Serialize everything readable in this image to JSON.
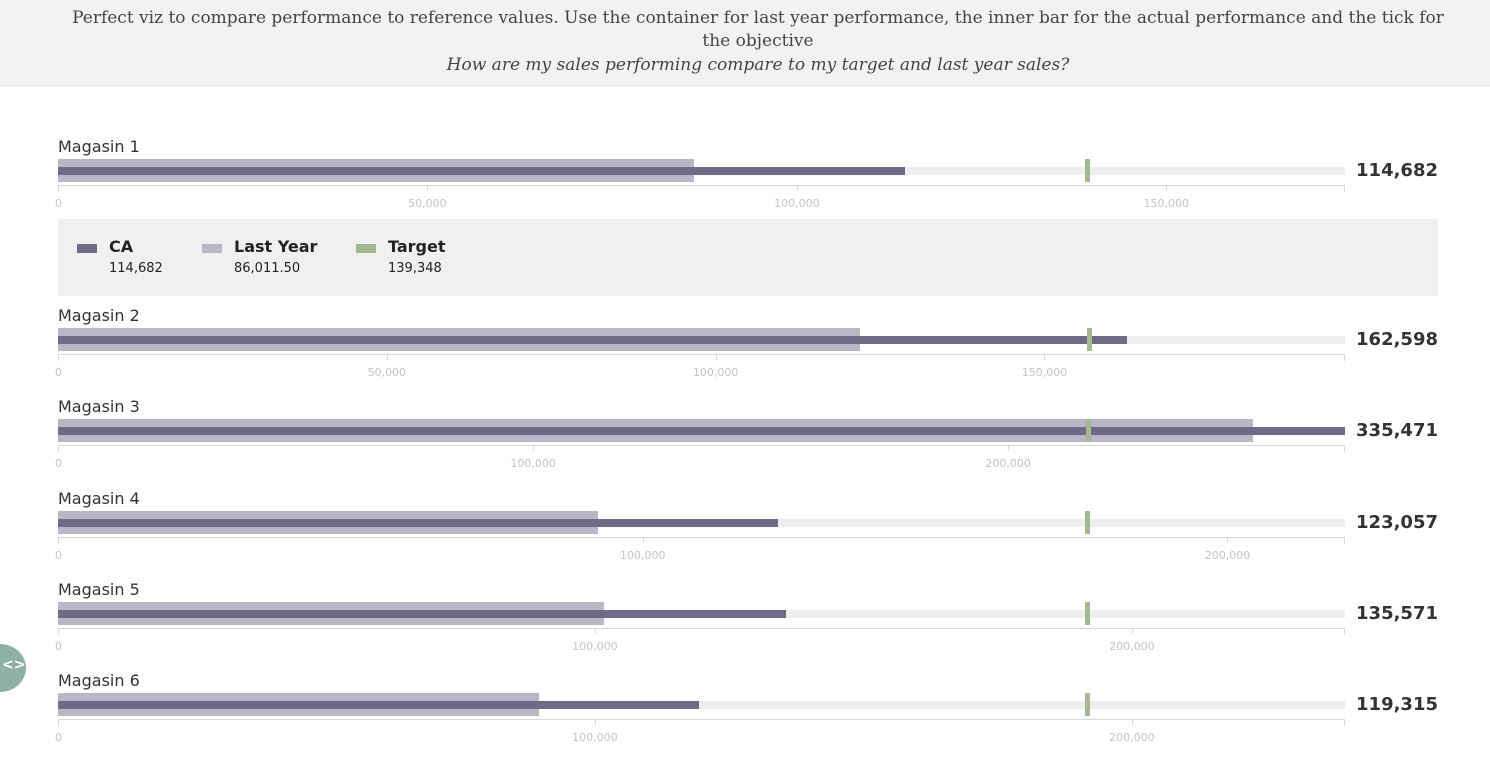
{
  "header": {
    "description": "Perfect viz to compare performance to reference values. Use the container for last year performance, the inner bar for the actual performance and the tick for the objective",
    "question": "How are my sales performing compare to my target and last year sales?"
  },
  "legend": {
    "items": [
      {
        "name": "CA",
        "value": "114,682",
        "color": "#706a87"
      },
      {
        "name": "Last Year",
        "value": "86,011.50",
        "color": "#b9b6c6"
      },
      {
        "name": "Target",
        "value": "139,348",
        "color": "#a4b98f"
      }
    ]
  },
  "chart_data": {
    "type": "bar",
    "subtype": "bullet",
    "series_meaning": {
      "ca": "CA",
      "last_year": "Last Year",
      "target": "Target"
    },
    "colors": {
      "ca": "#706a87",
      "last_year": "#b9b6c6",
      "target": "#a4b98f",
      "track": "#eeeeee"
    },
    "rows": [
      {
        "name": "Magasin 1",
        "ca": 114682,
        "last_year": 86011.5,
        "target": 139348,
        "axis_max": 174185,
        "ticks": [
          0,
          50000,
          100000,
          150000
        ],
        "tick_labels": [
          "0",
          "50,000",
          "100,000",
          "150,000"
        ],
        "value_label": "114,682"
      },
      {
        "name": "Magasin 2",
        "ca": 162598,
        "last_year": 121900,
        "target": 156800,
        "axis_max": 195700,
        "ticks": [
          0,
          50000,
          100000,
          150000
        ],
        "tick_labels": [
          "0",
          "50,000",
          "100,000",
          "150,000"
        ],
        "value_label": "162,598"
      },
      {
        "name": "Magasin 3",
        "ca": 335471,
        "last_year": 251600,
        "target": 216900,
        "axis_max": 270900,
        "ticks": [
          0,
          100000,
          200000
        ],
        "tick_labels": [
          "0",
          "100,000",
          "200,000"
        ],
        "value_label": "335,471"
      },
      {
        "name": "Magasin 4",
        "ca": 123057,
        "last_year": 92300,
        "target": 176100,
        "axis_max": 220100,
        "ticks": [
          0,
          100000,
          200000
        ],
        "tick_labels": [
          "0",
          "100,000",
          "200,000"
        ],
        "value_label": "123,057"
      },
      {
        "name": "Magasin 5",
        "ca": 135571,
        "last_year": 101700,
        "target": 191800,
        "axis_max": 239700,
        "ticks": [
          0,
          100000,
          200000
        ],
        "tick_labels": [
          "0",
          "100,000",
          "200,000"
        ],
        "value_label": "135,571"
      },
      {
        "name": "Magasin 6",
        "ca": 119315,
        "last_year": 89500,
        "target": 191800,
        "axis_max": 239700,
        "ticks": [
          0,
          100000,
          200000
        ],
        "tick_labels": [
          "0",
          "100,000",
          "200,000"
        ],
        "value_label": "119,315"
      }
    ]
  },
  "widget": {
    "icon": "code-icon",
    "glyph": "<>"
  }
}
